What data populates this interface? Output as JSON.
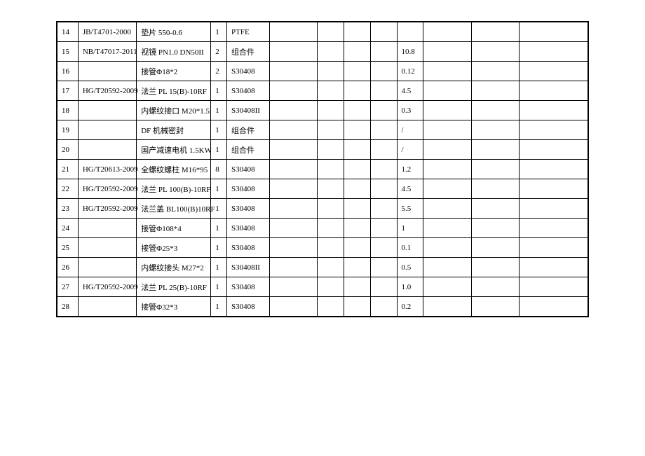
{
  "columns": [
    {
      "width": "4%"
    },
    {
      "width": "11%"
    },
    {
      "width": "14%"
    },
    {
      "width": "3%"
    },
    {
      "width": "8%"
    },
    {
      "width": "9%"
    },
    {
      "width": "5%"
    },
    {
      "width": "5%"
    },
    {
      "width": "5%"
    },
    {
      "width": "5%"
    },
    {
      "width": "9%"
    },
    {
      "width": "9%"
    },
    {
      "width": "13%"
    }
  ],
  "rows": [
    {
      "c0": "14",
      "c1": "JB/T4701-2000",
      "c2": "垫片  550-0.6",
      "c3": "1",
      "c4": "PTFE",
      "c5": "",
      "c6": "",
      "c7": "",
      "c8": "",
      "c9": "",
      "c10": "",
      "c11": "",
      "c12": ""
    },
    {
      "c0": "15",
      "c1": "NB/T47017-2011",
      "c2": "视镜 PN1.0 DN50II",
      "c3": "2",
      "c4": "组合件",
      "c5": "",
      "c6": "",
      "c7": "",
      "c8": "",
      "c9": "10.8",
      "c10": "",
      "c11": "",
      "c12": ""
    },
    {
      "c0": "16",
      "c1": "",
      "c2": "接管Φ18*2",
      "c3": "2",
      "c4": "S30408",
      "c5": "",
      "c6": "",
      "c7": "",
      "c8": "",
      "c9": "0.12",
      "c10": "",
      "c11": "",
      "c12": ""
    },
    {
      "c0": "17",
      "c1": "HG/T20592-2009",
      "c2": "法兰 PL 15(B)-10RF",
      "c3": "1",
      "c4": "S30408",
      "c5": "",
      "c6": "",
      "c7": "",
      "c8": "",
      "c9": "4.5",
      "c10": "",
      "c11": "",
      "c12": ""
    },
    {
      "c0": "18",
      "c1": "",
      "c2": "内螺纹接口 M20*1.5",
      "c3": "1",
      "c4": "S30408II",
      "c5": "",
      "c6": "",
      "c7": "",
      "c8": "",
      "c9": "0.3",
      "c10": "",
      "c11": "",
      "c12": ""
    },
    {
      "c0": "19",
      "c1": "",
      "c2": "DF 机械密封",
      "c3": "1",
      "c4": "组合件",
      "c5": "",
      "c6": "",
      "c7": "",
      "c8": "",
      "c9": "/",
      "c10": "",
      "c11": "",
      "c12": ""
    },
    {
      "c0": "20",
      "c1": "",
      "c2": "国产减速电机 1.5KW",
      "c3": "1",
      "c4": "组合件",
      "c5": "",
      "c6": "",
      "c7": "",
      "c8": "",
      "c9": "/",
      "c10": "",
      "c11": "",
      "c12": ""
    },
    {
      "c0": "21",
      "c1": "HG/T20613-2009",
      "c2": "全螺纹螺柱 M16*95",
      "c3": "8",
      "c4": "S30408",
      "c5": "",
      "c6": "",
      "c7": "",
      "c8": "",
      "c9": "1.2",
      "c10": "",
      "c11": "",
      "c12": ""
    },
    {
      "c0": "22",
      "c1": "HG/T20592-2009",
      "c2": "法兰 PL 100(B)-10RF",
      "c3": "1",
      "c4": "S30408",
      "c5": "",
      "c6": "",
      "c7": "",
      "c8": "",
      "c9": "4.5",
      "c10": "",
      "c11": "",
      "c12": ""
    },
    {
      "c0": "23",
      "c1": "HG/T20592-2009",
      "c2": "法兰盖 BL100(B)10RF",
      "c3": "1",
      "c4": "S30408",
      "c5": "",
      "c6": "",
      "c7": "",
      "c8": "",
      "c9": "5.5",
      "c10": "",
      "c11": "",
      "c12": ""
    },
    {
      "c0": "24",
      "c1": "",
      "c2": "接管Φ108*4",
      "c3": "1",
      "c4": "S30408",
      "c5": "",
      "c6": "",
      "c7": "",
      "c8": "",
      "c9": "1",
      "c10": "",
      "c11": "",
      "c12": ""
    },
    {
      "c0": "25",
      "c1": "",
      "c2": "接管Φ25*3",
      "c3": "1",
      "c4": "S30408",
      "c5": "",
      "c6": "",
      "c7": "",
      "c8": "",
      "c9": "0.1",
      "c10": "",
      "c11": "",
      "c12": ""
    },
    {
      "c0": "26",
      "c1": "",
      "c2": "内螺纹接头 M27*2",
      "c3": "1",
      "c4": "S30408II",
      "c5": "",
      "c6": "",
      "c7": "",
      "c8": "",
      "c9": "0.5",
      "c10": "",
      "c11": "",
      "c12": ""
    },
    {
      "c0": "27",
      "c1": "HG/T20592-2009",
      "c2": "法兰 PL 25(B)-10RF",
      "c3": "1",
      "c4": "S30408",
      "c5": "",
      "c6": "",
      "c7": "",
      "c8": "",
      "c9": "1.0",
      "c10": "",
      "c11": "",
      "c12": ""
    },
    {
      "c0": "28",
      "c1": "",
      "c2": "接管Φ32*3",
      "c3": "1",
      "c4": "S30408",
      "c5": "",
      "c6": "",
      "c7": "",
      "c8": "",
      "c9": "0.2",
      "c10": "",
      "c11": "",
      "c12": ""
    }
  ]
}
